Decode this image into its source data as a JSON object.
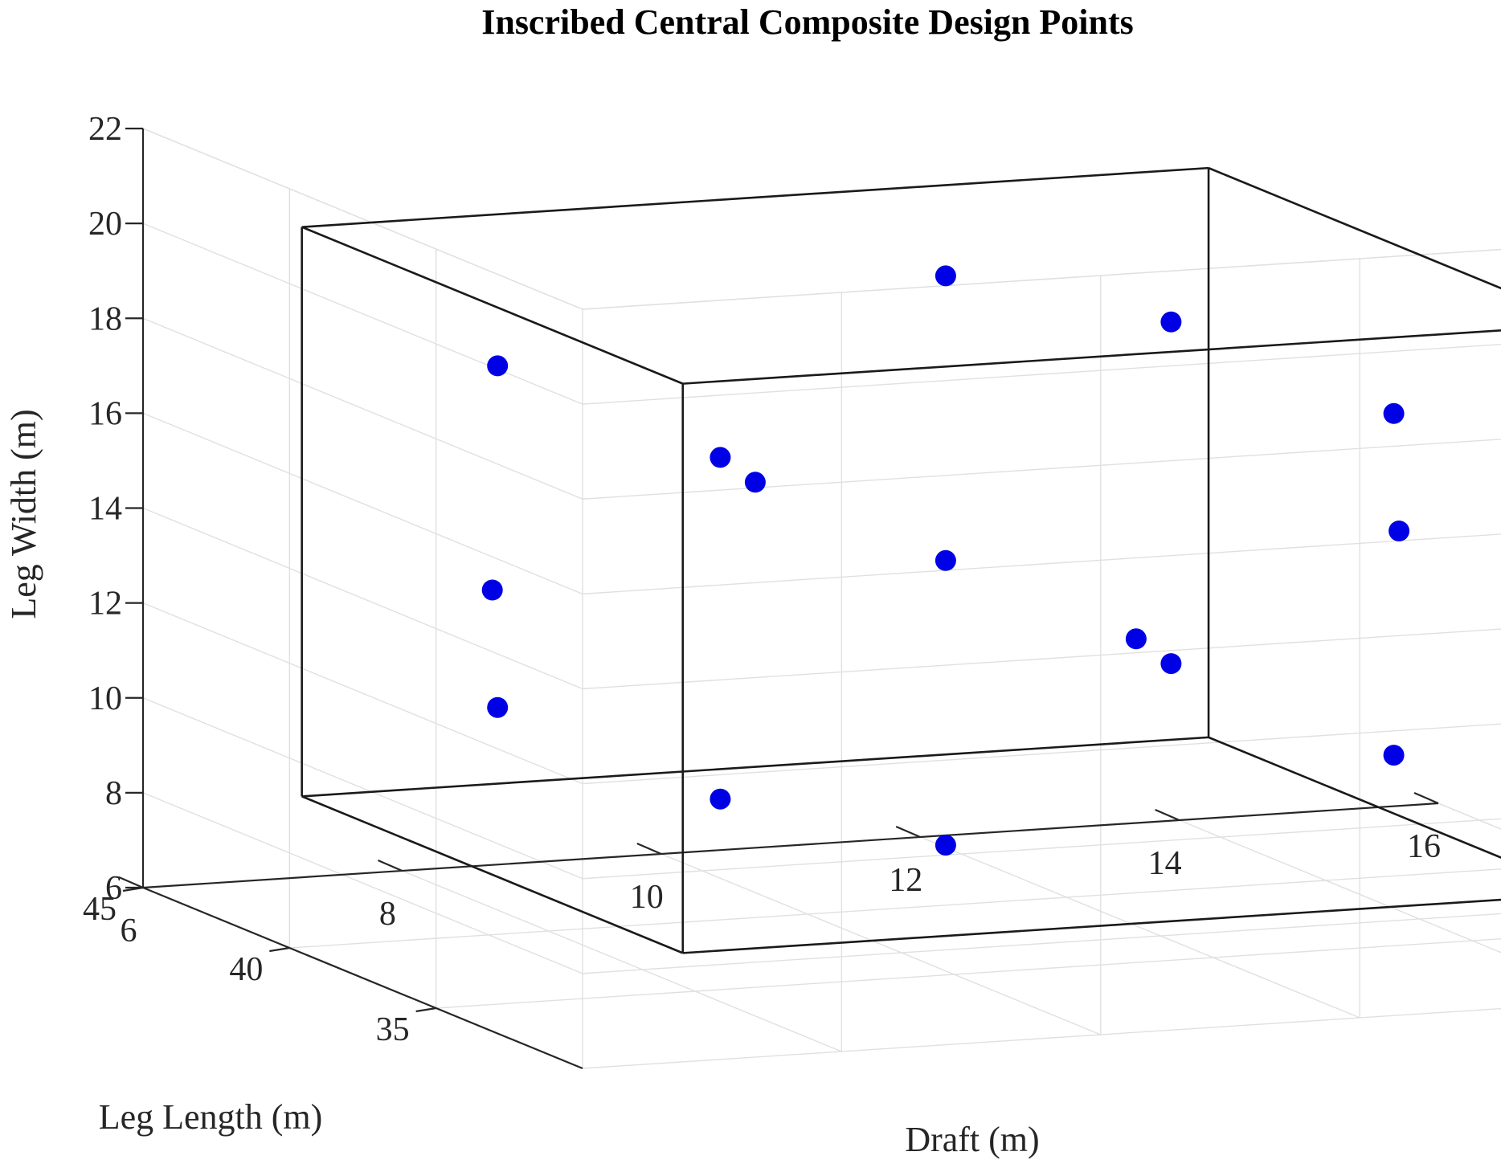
{
  "chart_data": {
    "type": "scatter",
    "title": "Inscribed Central Composite Design Points",
    "xlabel": "Draft (m)",
    "ylabel": "Leg Length (m)",
    "zlabel": "Leg Width (m)",
    "xlim": [
      6,
      16
    ],
    "ylim": [
      30,
      45
    ],
    "zlim": [
      6,
      22
    ],
    "xticks": [
      "6",
      "8",
      "10",
      "12",
      "14",
      "16"
    ],
    "yticks": [
      "35",
      "40",
      "45"
    ],
    "zticks": [
      "6",
      "8",
      "10",
      "12",
      "14",
      "16",
      "18",
      "20",
      "22"
    ],
    "grid": true,
    "marker_color": "#0000e6",
    "design_box": {
      "x": [
        7,
        14
      ],
      "y": [
        31,
        44
      ],
      "z": [
        8,
        20
      ]
    },
    "points": [
      {
        "x": 7.9,
        "y": 33.7,
        "z": 10.4
      },
      {
        "x": 13.1,
        "y": 33.7,
        "z": 10.4
      },
      {
        "x": 7.9,
        "y": 41.3,
        "z": 10.4
      },
      {
        "x": 13.1,
        "y": 41.3,
        "z": 10.4
      },
      {
        "x": 7.9,
        "y": 33.7,
        "z": 17.6
      },
      {
        "x": 13.1,
        "y": 33.7,
        "z": 17.6
      },
      {
        "x": 7.9,
        "y": 41.3,
        "z": 17.6
      },
      {
        "x": 13.1,
        "y": 41.3,
        "z": 17.6
      },
      {
        "x": 7.0,
        "y": 37.5,
        "z": 14.0
      },
      {
        "x": 14.0,
        "y": 37.5,
        "z": 14.0
      },
      {
        "x": 10.5,
        "y": 31.0,
        "z": 14.0
      },
      {
        "x": 10.5,
        "y": 44.0,
        "z": 14.0
      },
      {
        "x": 10.5,
        "y": 37.5,
        "z": 8.0
      },
      {
        "x": 10.5,
        "y": 37.5,
        "z": 20.0
      },
      {
        "x": 10.5,
        "y": 37.5,
        "z": 14.0
      }
    ]
  }
}
